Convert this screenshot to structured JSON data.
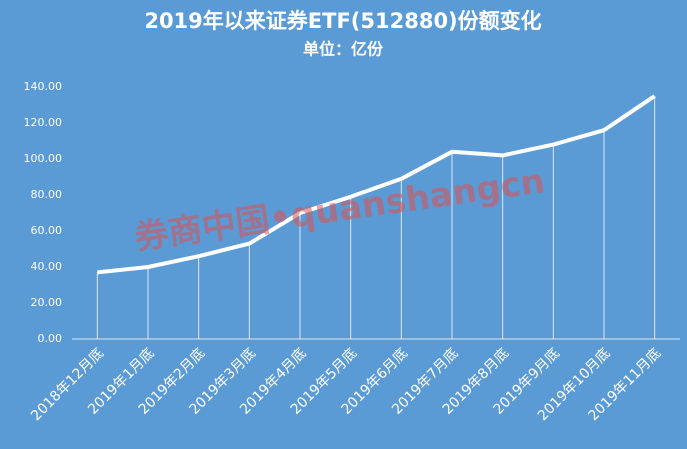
{
  "chart_data": {
    "type": "line",
    "title": "2019年以来证券ETF(512880)份额变化",
    "subtitle": "单位：亿份",
    "watermark": "券商中国•quanshangcn",
    "categories": [
      "2018年12月底",
      "2019年1月底",
      "2019年2月底",
      "2019年3月底",
      "2019年4月底",
      "2019年5月底",
      "2019年6月底",
      "2019年7月底",
      "2019年8月底",
      "2019年9月底",
      "2019年10月底",
      "2019年11月底"
    ],
    "values": [
      37,
      40,
      46,
      53,
      70,
      79,
      89,
      104,
      102,
      108,
      116,
      135
    ],
    "color": "#ffffff",
    "background": "#5b9bd5",
    "drop_lines": true,
    "ylim": [
      0,
      140
    ],
    "yticks": [
      {
        "value": 0,
        "label": "0.00"
      },
      {
        "value": 20,
        "label": "20.00"
      },
      {
        "value": 40,
        "label": "40.00"
      },
      {
        "value": 60,
        "label": "60.00"
      },
      {
        "value": 80,
        "label": "80.00"
      },
      {
        "value": 100,
        "label": "100.00"
      },
      {
        "value": 120,
        "label": "120.00"
      },
      {
        "value": 140,
        "label": "140.00"
      }
    ]
  }
}
